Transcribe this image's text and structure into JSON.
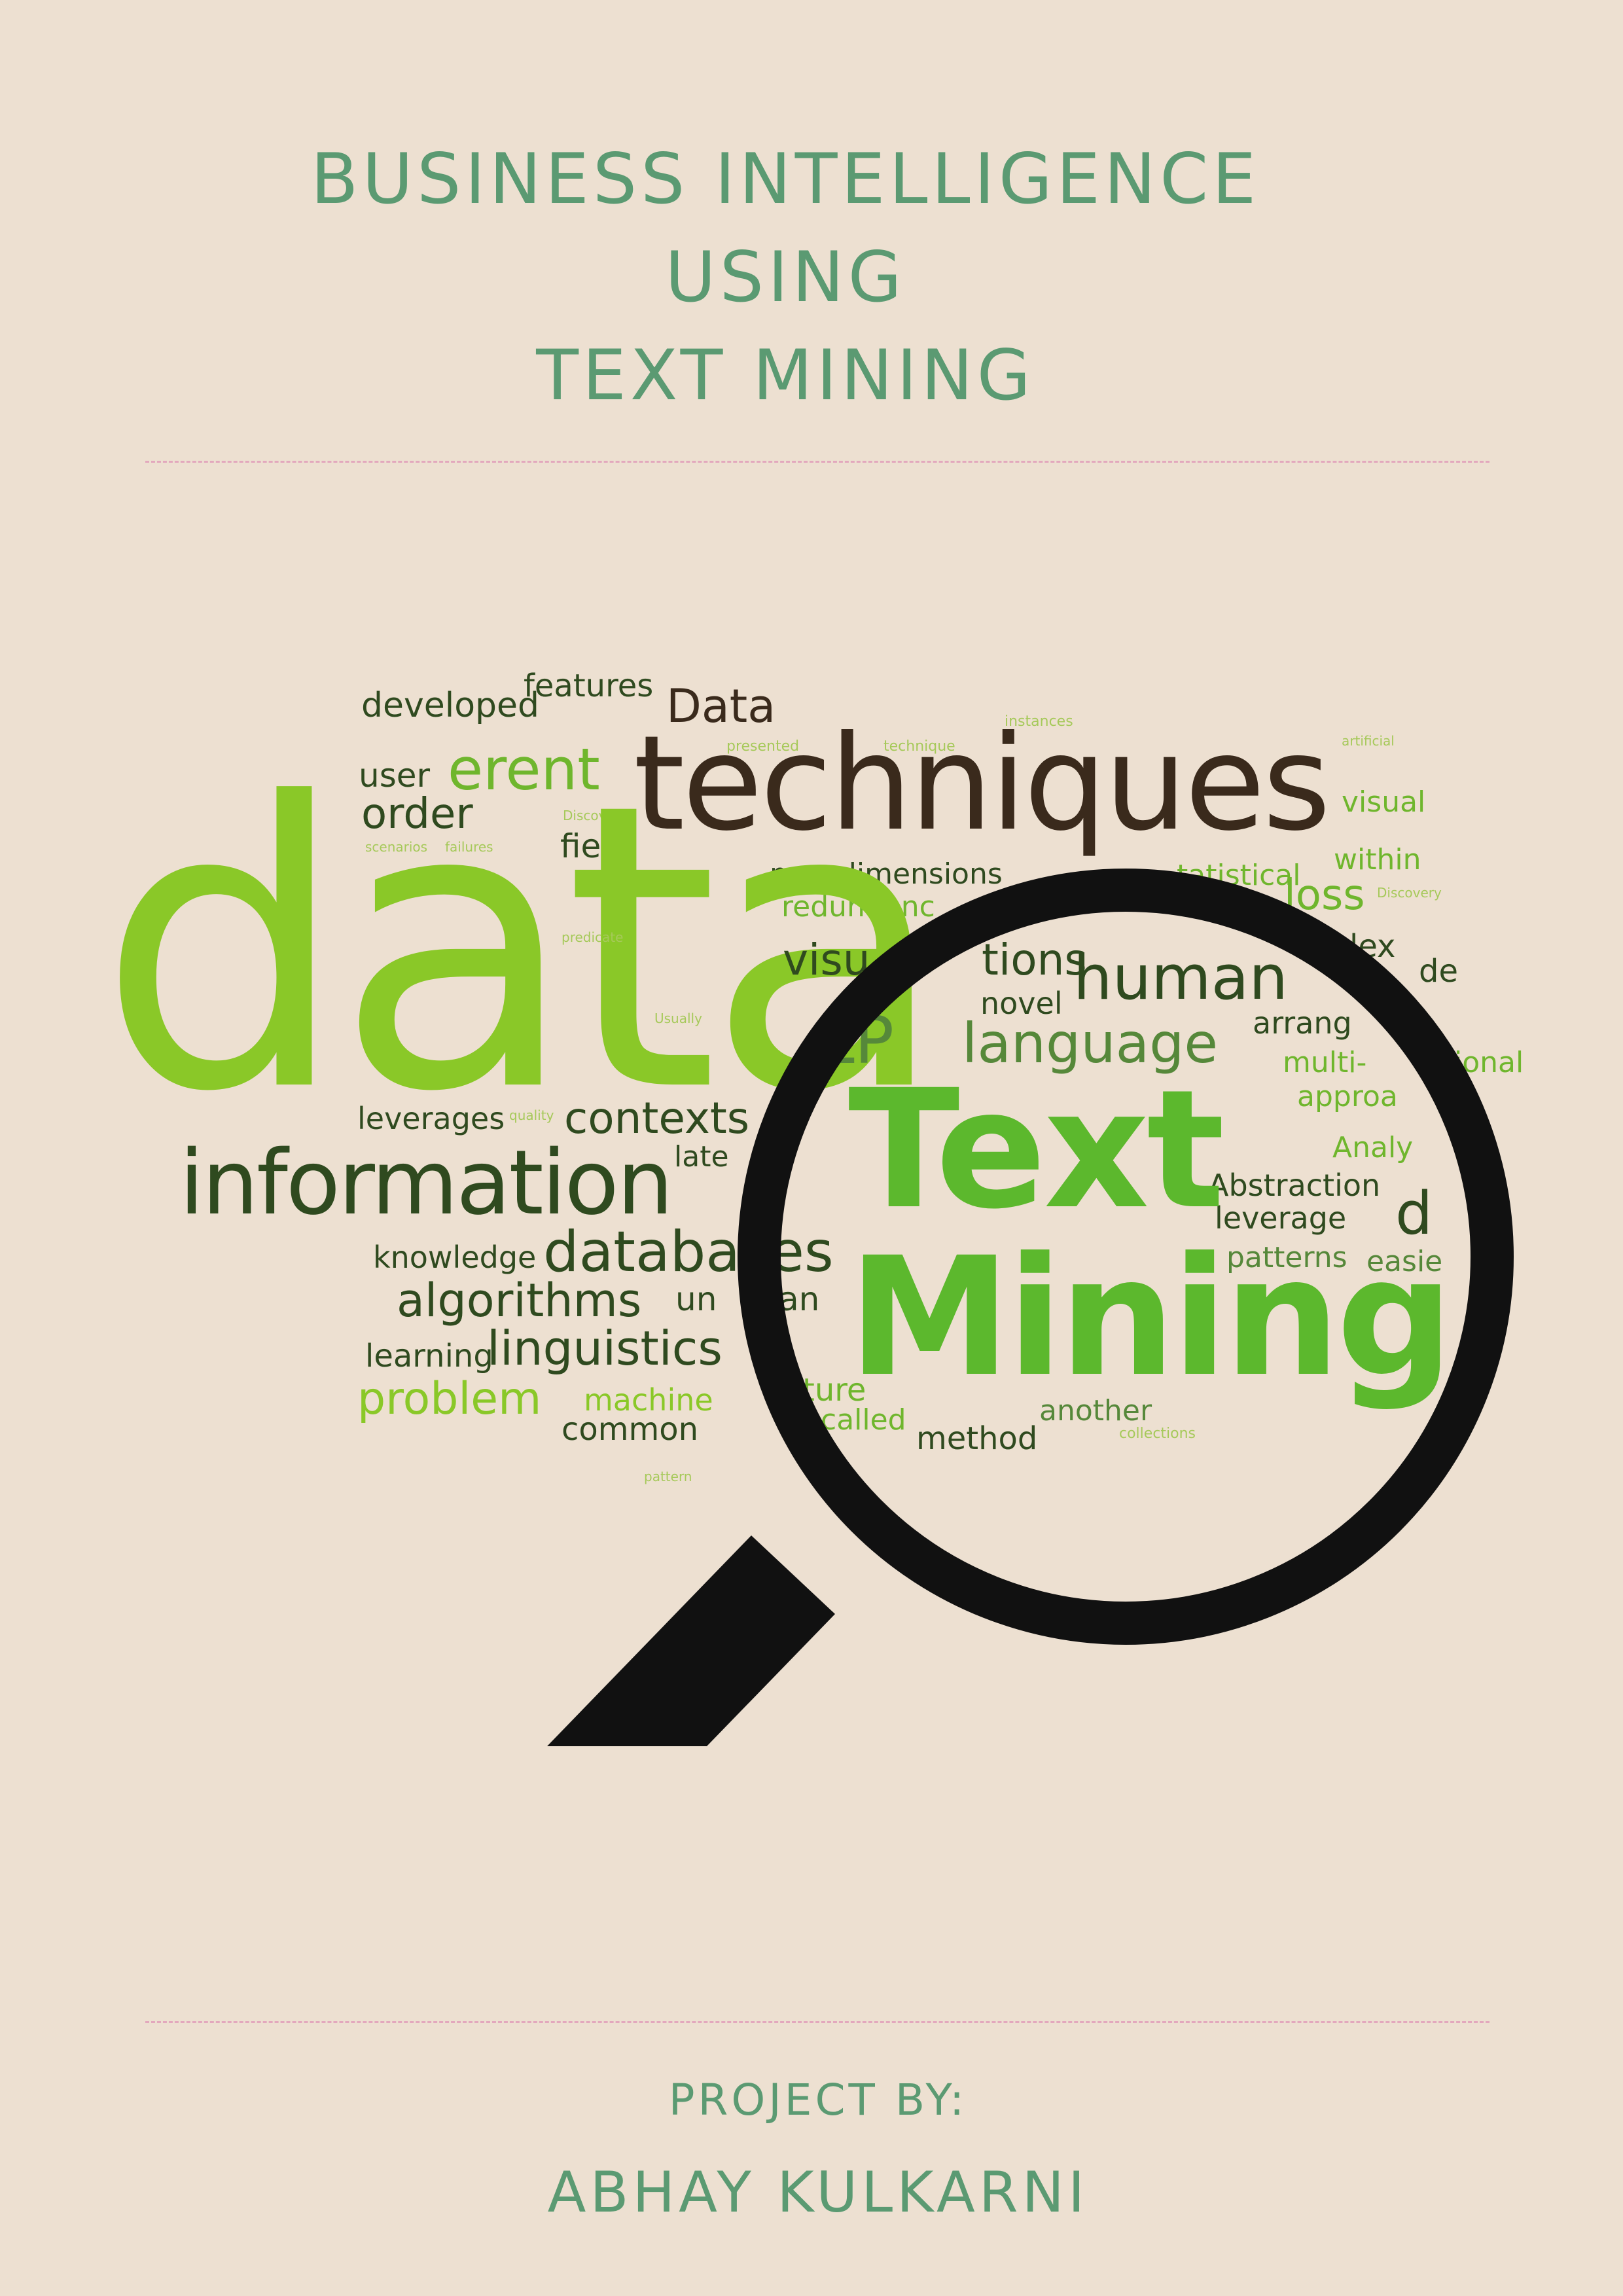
{
  "title": {
    "line1": "BUSINESS INTELLIGENCE",
    "line2": "USING",
    "line3": "TEXT MINING"
  },
  "word_cloud": {
    "data": "data",
    "techniques": "techniques",
    "information": "information",
    "text": "Text",
    "mining": "Mining",
    "developed": "developed",
    "features": "features",
    "data_cap": "Data",
    "user": "user",
    "erent": "erent",
    "order": "order",
    "field": "field",
    "new_dimensions": "new dimensions",
    "redundanc": "redundanc",
    "visual": "visual",
    "within": "within",
    "loss": "loss",
    "lex": "lex",
    "de": "de",
    "human": "human",
    "novel": "novel",
    "language": "language",
    "lp": "LP",
    "multi": "multi-",
    "ional": "ional",
    "approa": "approa",
    "analy": "Analy",
    "leverages": "leverages",
    "contexts": "contexts",
    "late": "late",
    "abstraction": "Abstraction",
    "leverage": "leverage",
    "patterns": "patterns",
    "easie": "easie",
    "knowledge": "knowledge",
    "databa": "databa",
    "es": "es",
    "algorithms": "algorithms",
    "learning": "learning",
    "linguistics": "linguistics",
    "problem": "problem",
    "machine": "machine",
    "common": "common",
    "called": "called",
    "method": "method",
    "another": "another",
    "statistical": "tatistical",
    "arrang": "arrang",
    "visu": "visu",
    "tions": "tions",
    "ture": "ture",
    "un": "un",
    "an": "an",
    "d_letter": "d",
    "instances": "instances",
    "presented": "presented",
    "technique": "technique",
    "discovery": "Discovery",
    "predicate": "predicate",
    "scenarios": "scenarios",
    "failures": "failures",
    "usually": "Usually",
    "quality": "quality",
    "artificial": "artificial",
    "collections": "collections",
    "pattern": "pattern"
  },
  "footer": {
    "project_by": "PROJECT BY:",
    "author": "ABHAY KULKARNI"
  },
  "colors": {
    "background": "#ede0d1",
    "title_green": "#5b9a72",
    "divider_pink": "#e3a8bd",
    "lime": "#8ac828",
    "text_green": "#5cb82d",
    "lens_black": "#111111"
  }
}
